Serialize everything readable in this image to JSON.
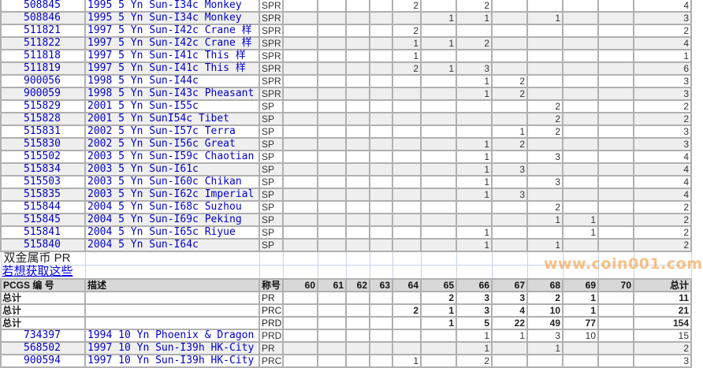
{
  "grade_columns": [
    "60",
    "61",
    "62",
    "63",
    "64",
    "65",
    "66",
    "67",
    "68",
    "69",
    "70"
  ],
  "rows_top": [
    {
      "id": "508845",
      "desc": "1995 5 Yn Sun-I34c Monkey",
      "grade": "SPR",
      "counts": {
        "64": "2",
        "66": "2"
      },
      "total": "4"
    },
    {
      "id": "508846",
      "desc": "1995 5 Yn Sun-I34c Monkey",
      "grade": "SPR",
      "counts": {
        "65": "1",
        "66": "1",
        "68": "1"
      },
      "total": "3"
    },
    {
      "id": "511821",
      "desc": "1997 5 Yn Sun-I42c Crane 样",
      "grade": "SPR",
      "counts": {
        "64": "2"
      },
      "total": "2"
    },
    {
      "id": "511822",
      "desc": "1997 5 Yn Sun-I42c Crane 样",
      "grade": "SPR",
      "counts": {
        "64": "1",
        "65": "1",
        "66": "2"
      },
      "total": "4"
    },
    {
      "id": "511818",
      "desc": "1997 5 Yn Sun-I41c This 样",
      "grade": "SPR",
      "counts": {
        "64": "1"
      },
      "total": "1"
    },
    {
      "id": "511819",
      "desc": "1997 5 Yn Sun-I41c This 样",
      "grade": "SPR",
      "counts": {
        "64": "2",
        "65": "1",
        "66": "3"
      },
      "total": "6"
    },
    {
      "id": "900056",
      "desc": "1998 5 Yn Sun-I44c",
      "grade": "SPR",
      "counts": {
        "66": "1",
        "67": "2"
      },
      "total": "3"
    },
    {
      "id": "900059",
      "desc": "1998 5 Yn Sun-I43c Pheasant",
      "grade": "SPR",
      "counts": {
        "66": "1",
        "67": "2"
      },
      "total": "3"
    },
    {
      "id": "515829",
      "desc": "2001 5 Yn Sun-I55c",
      "grade": "SP",
      "counts": {
        "68": "2"
      },
      "total": "2"
    },
    {
      "id": "515828",
      "desc": "2001 5 Yn SunI54c Tibet",
      "grade": "SP",
      "counts": {
        "68": "2"
      },
      "total": "2"
    },
    {
      "id": "515831",
      "desc": "2002 5 Yn Sun-I57c Terra",
      "grade": "SP",
      "counts": {
        "67": "1",
        "68": "2"
      },
      "total": "3"
    },
    {
      "id": "515830",
      "desc": "2002 5 Yn Sun-I56c Great",
      "grade": "SP",
      "counts": {
        "66": "1",
        "67": "2"
      },
      "total": "3"
    },
    {
      "id": "515502",
      "desc": "2003 5 Yn Sun-I59c Chaotian",
      "grade": "SP",
      "counts": {
        "66": "1",
        "68": "3"
      },
      "total": "4"
    },
    {
      "id": "515834",
      "desc": "2003 5 Yn Sun-I61c",
      "grade": "SP",
      "counts": {
        "66": "1",
        "67": "3"
      },
      "total": "4"
    },
    {
      "id": "515503",
      "desc": "2003 5 Yn Sun-I60c Chikan",
      "grade": "SP",
      "counts": {
        "66": "1",
        "68": "3"
      },
      "total": "4"
    },
    {
      "id": "515835",
      "desc": "2003 5 Yn Sun-I62c Imperial",
      "grade": "SP",
      "counts": {
        "66": "1",
        "67": "3"
      },
      "total": "4"
    },
    {
      "id": "515844",
      "desc": "2004 5 Yn Sun-I68c Suzhou",
      "grade": "SP",
      "counts": {
        "68": "2"
      },
      "total": "2"
    },
    {
      "id": "515845",
      "desc": "2004 5 Yn Sun-I69c Peking",
      "grade": "SP",
      "counts": {
        "68": "1",
        "69": "1"
      },
      "total": "2"
    },
    {
      "id": "515841",
      "desc": "2004 5 Yn Sun-I65c Riyue",
      "grade": "SP",
      "counts": {
        "66": "1",
        "69": "1"
      },
      "total": "2"
    },
    {
      "id": "515840",
      "desc": "2004 5 Yn Sun-I64c",
      "grade": "SP",
      "counts": {
        "66": "1",
        "68": "1"
      },
      "total": "2"
    }
  ],
  "section": {
    "title": "双金属币 PR",
    "link": "若想获取这些"
  },
  "header": {
    "id": "PCGS 编 号",
    "desc": "描述",
    "grade": "称号",
    "total": "总计"
  },
  "summary_rows": [
    {
      "label": "总计",
      "grade": "PR",
      "counts": {
        "65": "2",
        "66": "3",
        "67": "3",
        "68": "2",
        "69": "1"
      },
      "total": "11"
    },
    {
      "label": "总计",
      "grade": "PRC",
      "counts": {
        "64": "2",
        "65": "1",
        "66": "3",
        "67": "4",
        "68": "10",
        "69": "1"
      },
      "total": "21"
    },
    {
      "label": "总计",
      "grade": "PRD",
      "counts": {
        "65": "1",
        "66": "5",
        "67": "22",
        "68": "49",
        "69": "77"
      },
      "total": "154"
    }
  ],
  "rows_bottom": [
    {
      "id": "734397",
      "desc": "1994 10 Yn Phoenix & Dragon",
      "grade": "PRD",
      "counts": {
        "66": "1",
        "67": "1",
        "68": "3",
        "69": "10"
      },
      "total": "15"
    },
    {
      "id": "568502",
      "desc": "1997 10 Yn Sun-I39h HK-City",
      "grade": "PR",
      "counts": {
        "66": "1",
        "68": "1"
      },
      "total": "2"
    },
    {
      "id": "900594",
      "desc": "1997 10 Yn Sun-I39h HK-City",
      "grade": "PRC",
      "counts": {
        "64": "1",
        "66": "2"
      },
      "total": "3"
    }
  ],
  "watermark": "www.coin001.com",
  "colors": {
    "link": "#0000cc",
    "grid": "#b0b0b0",
    "alt_row": "#efefef",
    "header_bg": "#d8d8d8",
    "watermark": "#f5a046"
  }
}
